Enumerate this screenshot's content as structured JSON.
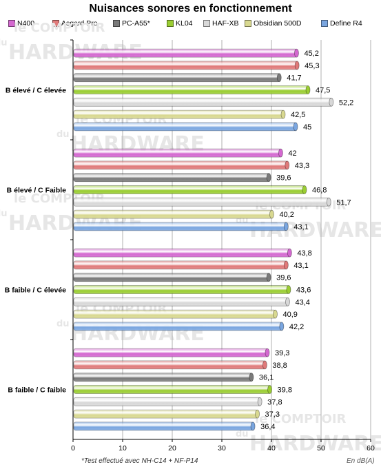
{
  "chart_data": {
    "type": "bar",
    "orientation": "horizontal",
    "title": "Nuisances sonores en fonctionnement",
    "categories": [
      "B élevé / C élevée",
      "B élevé / C Faible",
      "B faible / C élevée",
      "B faible / C faible"
    ],
    "series": [
      {
        "name": "N400",
        "color": "#d468d0",
        "values": [
          45.2,
          42,
          43.8,
          39.3
        ],
        "labels": [
          "45,2",
          "42",
          "43,8",
          "39,3"
        ]
      },
      {
        "name": "Asgard Pro",
        "color": "#e07a7a",
        "values": [
          45.3,
          43.3,
          43.1,
          38.8
        ],
        "labels": [
          "45,3",
          "43,3",
          "43,1",
          "38,8"
        ]
      },
      {
        "name": "PC-A55*",
        "color": "#7a7a7a",
        "values": [
          41.7,
          39.6,
          39.6,
          36.1
        ],
        "labels": [
          "41,7",
          "39,6",
          "39,6",
          "36,1"
        ]
      },
      {
        "name": "KL04",
        "color": "#9acd32",
        "values": [
          47.5,
          46.8,
          43.6,
          39.8
        ],
        "labels": [
          "47,5",
          "46,8",
          "43,6",
          "39,8"
        ]
      },
      {
        "name": "HAF-XB",
        "color": "#d8d8d8",
        "values": [
          52.2,
          51.7,
          43.4,
          37.8
        ],
        "labels": [
          "52,2",
          "51,7",
          "43,4",
          "37,8"
        ]
      },
      {
        "name": "Obsidian 500D",
        "color": "#d8d890",
        "values": [
          42.5,
          40.2,
          40.9,
          37.3
        ],
        "labels": [
          "42,5",
          "40,2",
          "40,9",
          "37,3"
        ]
      },
      {
        "name": "Define R4",
        "color": "#7aa6e0",
        "values": [
          45,
          43.1,
          42.2,
          36.4
        ],
        "labels": [
          "45",
          "43,1",
          "42,2",
          "36,4"
        ]
      }
    ],
    "xlim": [
      0,
      60
    ],
    "xticks": [
      "0",
      "10",
      "20",
      "30",
      "40",
      "50",
      "60"
    ],
    "legend_position": "top",
    "grid": true,
    "footnote": "*Test  effectué  avec NH-C14 + NF-P14",
    "unit_label": "En dB(A)"
  },
  "watermark": {
    "line1": "le COMPTOIR",
    "line2": "du",
    "line3": "HARDWARE"
  }
}
